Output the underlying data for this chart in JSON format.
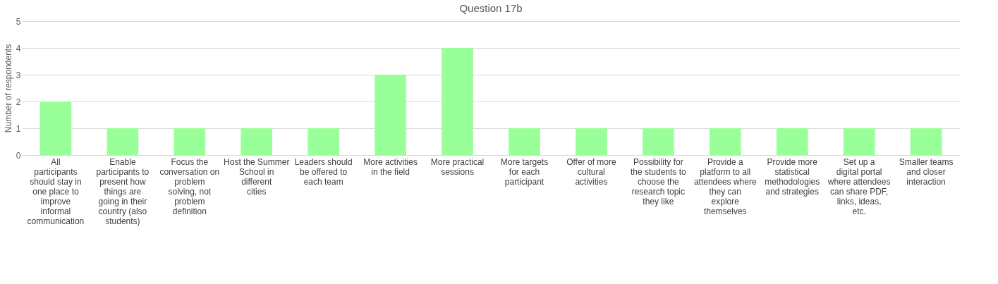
{
  "chart_data": {
    "type": "bar",
    "title": "Question 17b",
    "ylabel": "Number of respondents",
    "categories": [
      "All participants should stay in one place to improve informal communication",
      "Enable participants to present how things are going in their country (also students)",
      "Focus the conversation on problem solving, not problem definition",
      "Host the Summer School in different cities",
      "Leaders should be offered to each team",
      "More activities in the field",
      "More practical sessions",
      "More targets for each participant",
      "Offer of more cultural activities",
      "Possibility for the students to choose the research topic they like",
      "Provide a platform to all attendees where they can explore themselves",
      "Provide more statistical methodologies and strategies",
      "Set up a digital portal where attendees can share PDF, links, ideas, etc.",
      "Smaller teams and closer interaction"
    ],
    "values": [
      2,
      1,
      1,
      1,
      1,
      3,
      4,
      1,
      1,
      1,
      1,
      1,
      1,
      1
    ],
    "color": "#99ff99",
    "ylim": [
      0,
      5
    ],
    "yticks": [
      0,
      1,
      2,
      3,
      4,
      5
    ],
    "grid": "y"
  }
}
